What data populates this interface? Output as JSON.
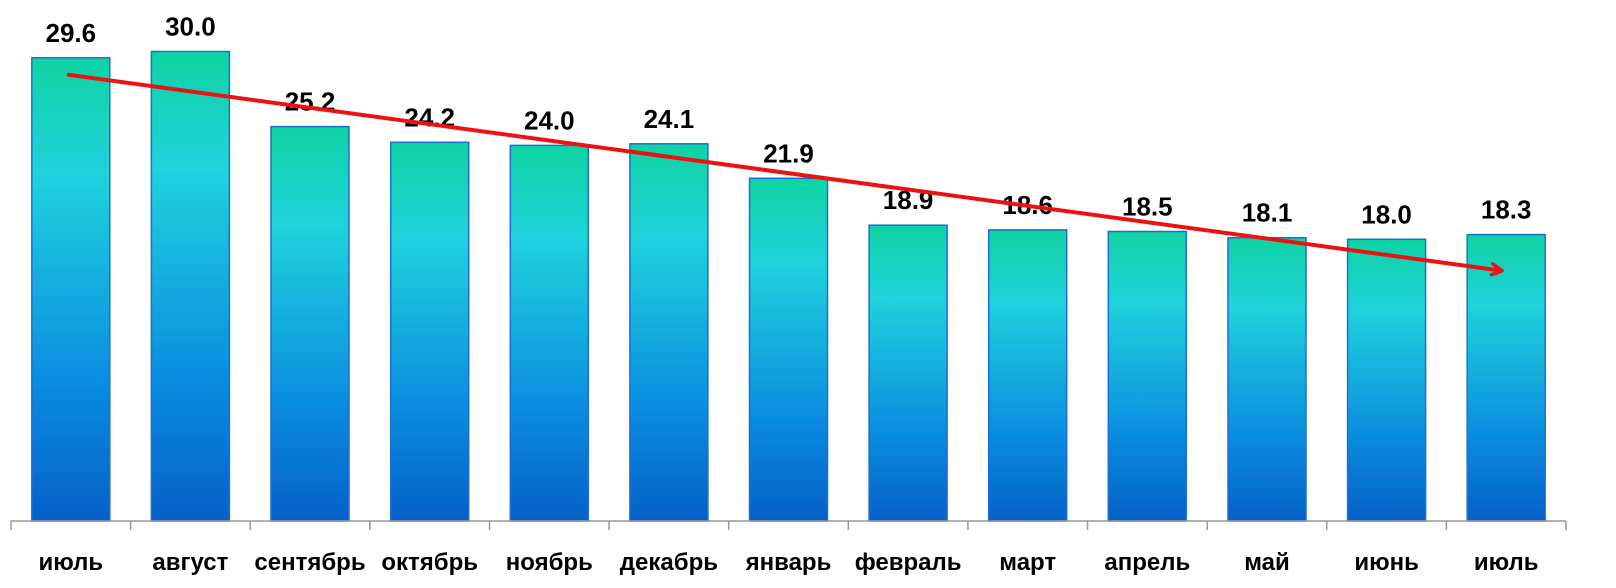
{
  "chart_data": {
    "type": "bar",
    "title": "",
    "xlabel": "",
    "ylabel": "",
    "categories": [
      "июль",
      "август",
      "сентябрь",
      "октябрь",
      "ноябрь",
      "декабрь",
      "январь",
      "февраль",
      "март",
      "апрель",
      "май",
      "июнь",
      "июль"
    ],
    "values": [
      29.6,
      30.0,
      25.2,
      24.2,
      24.0,
      24.1,
      21.9,
      18.9,
      18.6,
      18.5,
      18.1,
      18.0,
      18.3
    ],
    "value_labels": [
      "29.6",
      "30.0",
      "25.2",
      "24.2",
      "24.0",
      "24.1",
      "21.9",
      "18.9",
      "18.6",
      "18.5",
      "18.1",
      "18.0",
      "18.3"
    ],
    "ylim": [
      0,
      30
    ],
    "grid": false,
    "legend": "none",
    "trend_arrow": {
      "from_index": 0,
      "to_index": 12,
      "color": "#ee1111"
    },
    "colors": {
      "bar_top": "#0fd3a3",
      "bar_mid": "#1fd2dc",
      "bar_lower": "#0a8de0",
      "bar_bottom": "#0560c8",
      "bar_border": "#1c6fd0",
      "axis": "#999999"
    }
  }
}
